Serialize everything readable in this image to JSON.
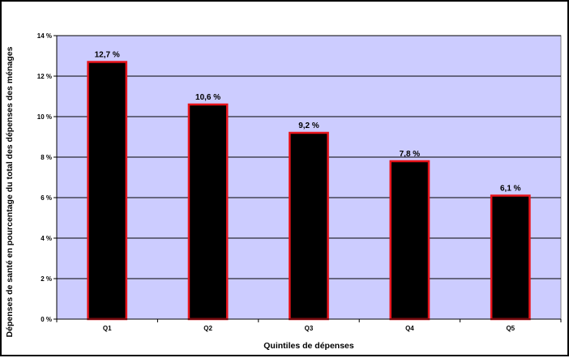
{
  "chart_data": {
    "type": "bar",
    "categories": [
      "Q1",
      "Q2",
      "Q3",
      "Q4",
      "Q5"
    ],
    "values": [
      12.7,
      10.6,
      9.2,
      7.8,
      6.1
    ],
    "value_labels": [
      "12,7 %",
      "10,6 %",
      "9,2 %",
      "7,8 %",
      "6,1 %"
    ],
    "xlabel": "Quintiles de dépenses",
    "ylabel": "Dépenses de santé en pourcentage du total des dépenses des ménages",
    "ylim": [
      0,
      14
    ],
    "yticks": [
      0,
      2,
      4,
      6,
      8,
      10,
      12,
      14
    ],
    "ytick_labels": [
      "0 %",
      "2 %",
      "4 %",
      "6 %",
      "8 %",
      "10 %",
      "12 %",
      "14 %"
    ],
    "grid": true,
    "legend": "none",
    "colors": {
      "plot_background": "#ccccff",
      "bar_fill": "#000000",
      "bar_border": "#e8141b",
      "gridline": "#000000"
    }
  }
}
